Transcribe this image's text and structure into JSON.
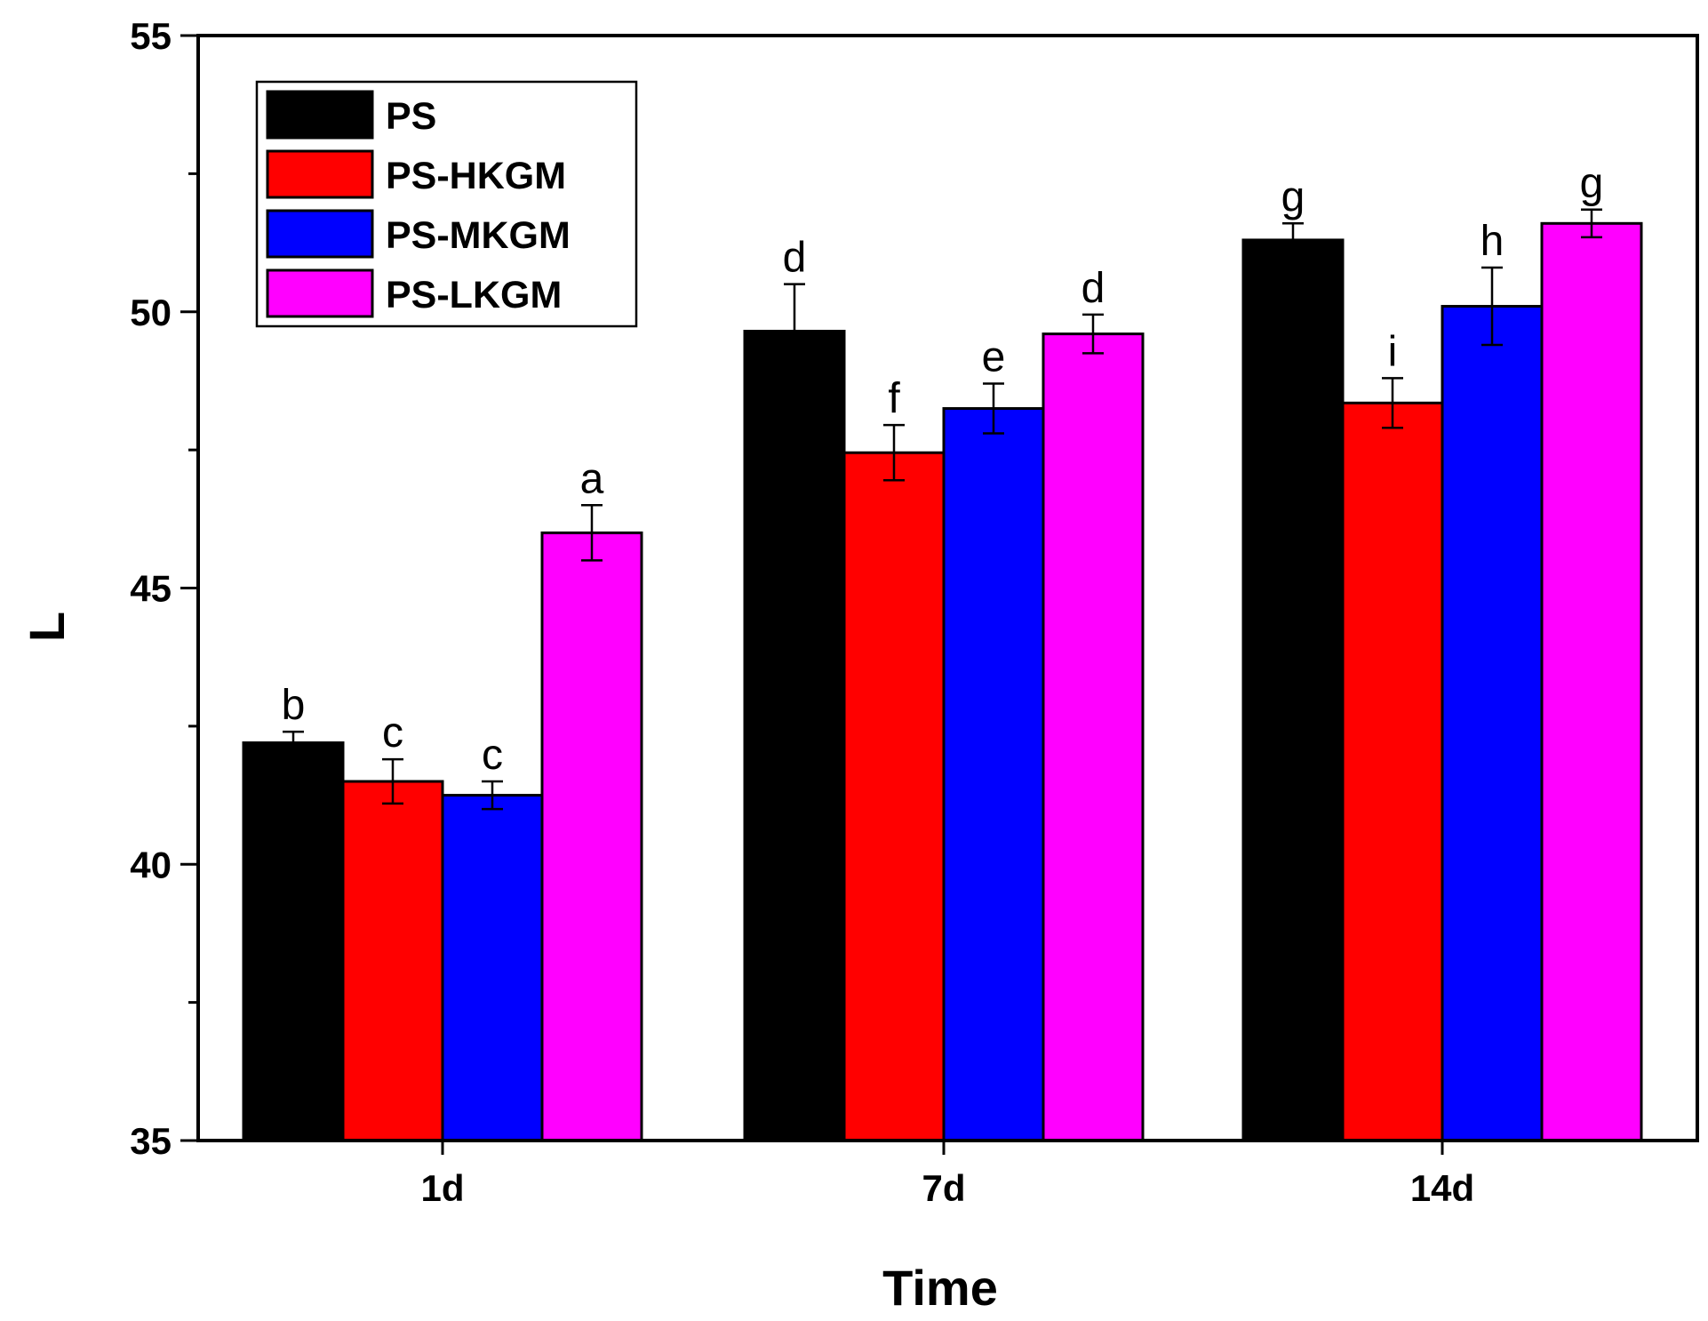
{
  "chart_data": {
    "type": "bar",
    "title": "",
    "xlabel": "Time",
    "ylabel": "L",
    "categories": [
      "1d",
      "7d",
      "14d"
    ],
    "ylim": [
      35,
      55
    ],
    "yticks": [
      35,
      40,
      45,
      50,
      55
    ],
    "legend_position": "top-left",
    "grid": false,
    "series": [
      {
        "name": "PS",
        "color": "#000000",
        "values": [
          42.2,
          49.65,
          51.3
        ],
        "errors": [
          0.2,
          0.85,
          0.3
        ],
        "labels": [
          "b",
          "d",
          "g"
        ]
      },
      {
        "name": "PS-HKGM",
        "color": "#ff0000",
        "values": [
          41.5,
          47.45,
          48.35
        ],
        "errors": [
          0.4,
          0.5,
          0.45
        ],
        "labels": [
          "c",
          "f",
          "i"
        ]
      },
      {
        "name": "PS-MKGM",
        "color": "#0000ff",
        "values": [
          41.25,
          48.25,
          50.1
        ],
        "errors": [
          0.25,
          0.45,
          0.7
        ],
        "labels": [
          "c",
          "e",
          "h"
        ]
      },
      {
        "name": "PS-LKGM",
        "color": "#ff00ff",
        "values": [
          46.0,
          49.6,
          51.6
        ],
        "errors": [
          0.5,
          0.35,
          0.25
        ],
        "labels": [
          "a",
          "d",
          "g"
        ]
      }
    ]
  }
}
